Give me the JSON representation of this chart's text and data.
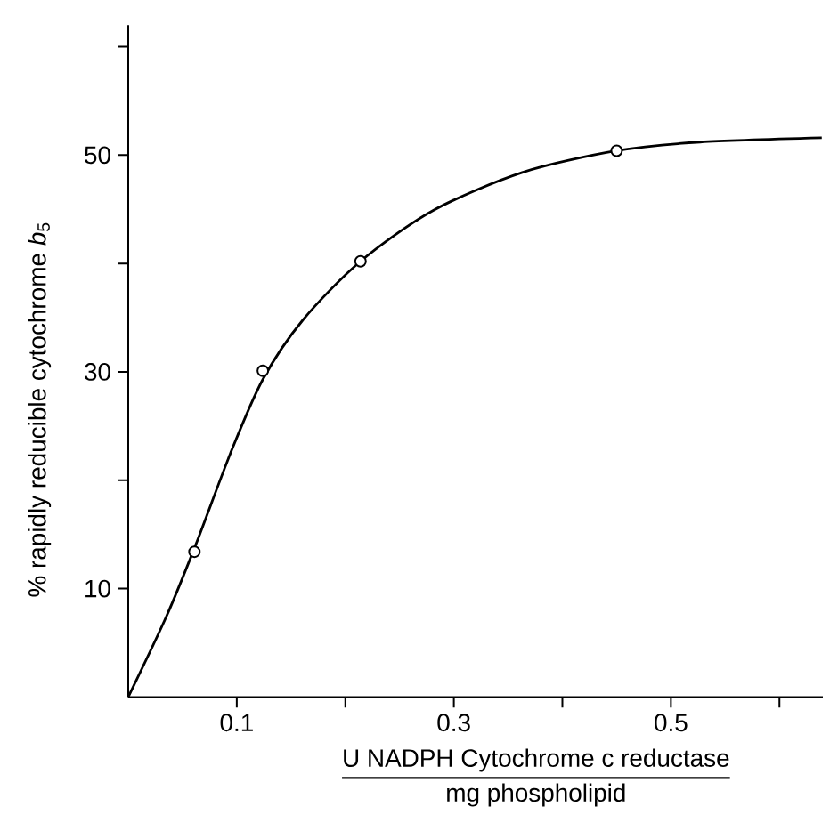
{
  "chart_data": {
    "type": "scatter",
    "xlabel": "\\frac{\\text{U NADPH Cytochrome c reductase}}{\\text{mg phospholipid}}",
    "ylabel": "% rapidly reducible cytochrome *b*$_{5}$",
    "xlim": [
      0,
      0.64
    ],
    "ylim": [
      0,
      62
    ],
    "xticks": [
      {
        "value": 0.1,
        "label": "0.1"
      },
      {
        "value": 0.2,
        "label": null
      },
      {
        "value": 0.3,
        "label": "0.3"
      },
      {
        "value": 0.4,
        "label": null
      },
      {
        "value": 0.5,
        "label": "0.5"
      },
      {
        "value": 0.6,
        "label": null
      }
    ],
    "yticks": [
      {
        "value": 10,
        "label": "10"
      },
      {
        "value": 20,
        "label": null
      },
      {
        "value": 30,
        "label": "30"
      },
      {
        "value": 40,
        "label": null
      },
      {
        "value": 50,
        "label": "50"
      },
      {
        "value": 60,
        "label": null
      }
    ],
    "grid": false,
    "series": [
      {
        "type": "line",
        "color": "#000000",
        "marker": "none",
        "line_style": "solid",
        "x": [
          0,
          0.035,
          0.062,
          0.095,
          0.124,
          0.161,
          0.214,
          0.281,
          0.363,
          0.45,
          0.527,
          0.639
        ],
        "values": [
          0,
          7.4,
          14.0,
          22.7,
          29.3,
          34.8,
          40.2,
          44.9,
          48.4,
          50.4,
          51.2,
          51.6
        ]
      },
      {
        "color": "#000000",
        "marker": "circle",
        "x": [
          0.061,
          0.124,
          0.214,
          0.45
        ],
        "values": [
          13.4,
          30.1,
          40.2,
          50.4
        ]
      }
    ]
  }
}
